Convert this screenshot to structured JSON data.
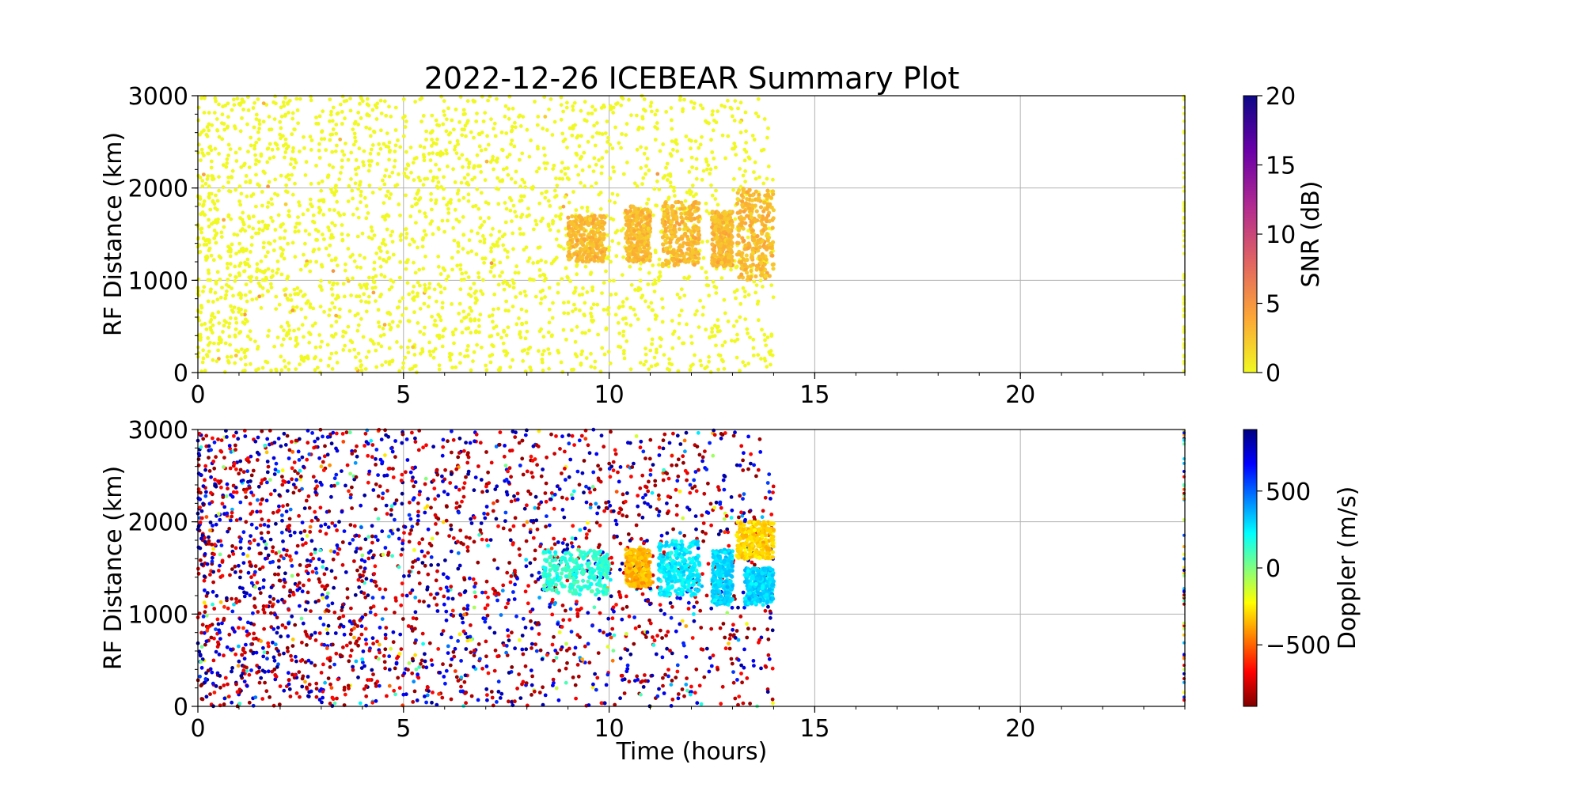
{
  "figure": {
    "title": "2022-12-26 ICEBEAR Summary Plot",
    "xlabel": "Time (hours)"
  },
  "chart_data": [
    {
      "type": "scatter",
      "panel": "snr",
      "ylabel": "RF Distance (km)",
      "xlim": [
        0,
        24
      ],
      "ylim": [
        0,
        3000
      ],
      "x_ticks": [
        "0",
        "5",
        "10",
        "15",
        "20"
      ],
      "y_ticks": [
        "0",
        "1000",
        "2000",
        "3000"
      ],
      "grid": true,
      "colorbar": {
        "label": "SNR (dB)",
        "range": [
          0,
          20
        ],
        "ticks": [
          "0",
          "5",
          "10",
          "15",
          "20"
        ],
        "colormap": "plasma_r",
        "colors": [
          "#f0f921",
          "#fca636",
          "#e16462",
          "#b12a90",
          "#6a00a8",
          "#0d0887"
        ]
      },
      "data_extent_hours": [
        0,
        14
      ],
      "bulk_value": 0,
      "clusters": [
        {
          "t": [
            9.0,
            9.9
          ],
          "r": [
            1200,
            1700
          ],
          "value": 3
        },
        {
          "t": [
            10.4,
            11.0
          ],
          "r": [
            1200,
            1800
          ],
          "value": 3
        },
        {
          "t": [
            11.3,
            12.2
          ],
          "r": [
            1150,
            1850
          ],
          "value": 3
        },
        {
          "t": [
            12.5,
            13.0
          ],
          "r": [
            1150,
            1750
          ],
          "value": 3
        },
        {
          "t": [
            13.1,
            14.0
          ],
          "r": [
            1000,
            2000
          ],
          "value": 3
        }
      ],
      "edge_points_hours": 24
    },
    {
      "type": "scatter",
      "panel": "doppler",
      "ylabel": "RF Distance (km)",
      "xlabel": "Time (hours)",
      "xlim": [
        0,
        24
      ],
      "ylim": [
        0,
        3000
      ],
      "x_ticks": [
        "0",
        "5",
        "10",
        "15",
        "20"
      ],
      "y_ticks": [
        "0",
        "1000",
        "2000",
        "3000"
      ],
      "grid": true,
      "colorbar": {
        "label": "Doppler (m/s)",
        "range": [
          -900,
          900
        ],
        "ticks": [
          "−500",
          "0",
          "500"
        ],
        "tick_values": [
          -500,
          0,
          500
        ],
        "colormap": "jet_r",
        "colors": [
          "#800000",
          "#ff0000",
          "#ff8000",
          "#ffff00",
          "#80ff80",
          "#00ffff",
          "#0080ff",
          "#0000ff",
          "#000080"
        ]
      },
      "data_extent_hours": [
        0,
        14
      ],
      "clusters": [
        {
          "t": [
            8.4,
            10.0
          ],
          "r": [
            1200,
            1700
          ],
          "value": 150
        },
        {
          "t": [
            10.4,
            11.0
          ],
          "r": [
            1300,
            1700
          ],
          "value": -350
        },
        {
          "t": [
            11.2,
            12.2
          ],
          "r": [
            1200,
            1800
          ],
          "value": 250
        },
        {
          "t": [
            12.5,
            13.0
          ],
          "r": [
            1100,
            1700
          ],
          "value": 300
        },
        {
          "t": [
            13.1,
            14.0
          ],
          "r": [
            1600,
            2000
          ],
          "value": -300
        },
        {
          "t": [
            13.3,
            14.0
          ],
          "r": [
            1100,
            1500
          ],
          "value": 300
        }
      ],
      "edge_points_hours": 24
    }
  ]
}
